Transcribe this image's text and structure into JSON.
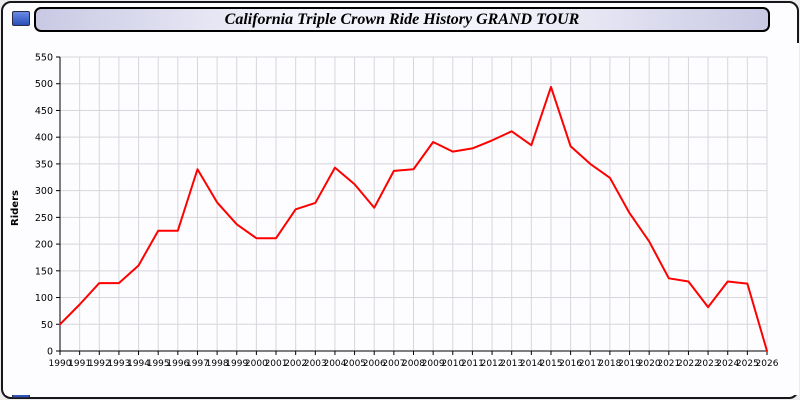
{
  "window": {
    "title": "California Triple Crown Ride History GRAND TOUR"
  },
  "chart_data": {
    "type": "line",
    "title": "California Triple Crown Ride History GRAND TOUR",
    "xlabel": "",
    "ylabel": "Riders",
    "ylim": [
      0,
      550
    ],
    "ytick_step": 50,
    "grid": true,
    "legend": "none",
    "line_color": "#ff0000",
    "x": [
      1990,
      1991,
      1992,
      1993,
      1994,
      1995,
      1996,
      1997,
      1998,
      1999,
      2000,
      2001,
      2002,
      2003,
      2004,
      2005,
      2006,
      2007,
      2008,
      2009,
      2010,
      2011,
      2012,
      2013,
      2014,
      2015,
      2016,
      2017,
      2018,
      2019,
      2020,
      2021,
      2022,
      2023,
      2024,
      2025,
      2026
    ],
    "values": [
      50,
      87,
      127,
      127,
      160,
      225,
      225,
      340,
      278,
      237,
      211,
      211,
      265,
      277,
      343,
      312,
      268,
      337,
      340,
      391,
      373,
      379,
      394,
      411,
      385,
      494,
      383,
      350,
      324,
      258,
      205,
      136,
      130,
      82,
      130,
      126,
      0
    ]
  }
}
